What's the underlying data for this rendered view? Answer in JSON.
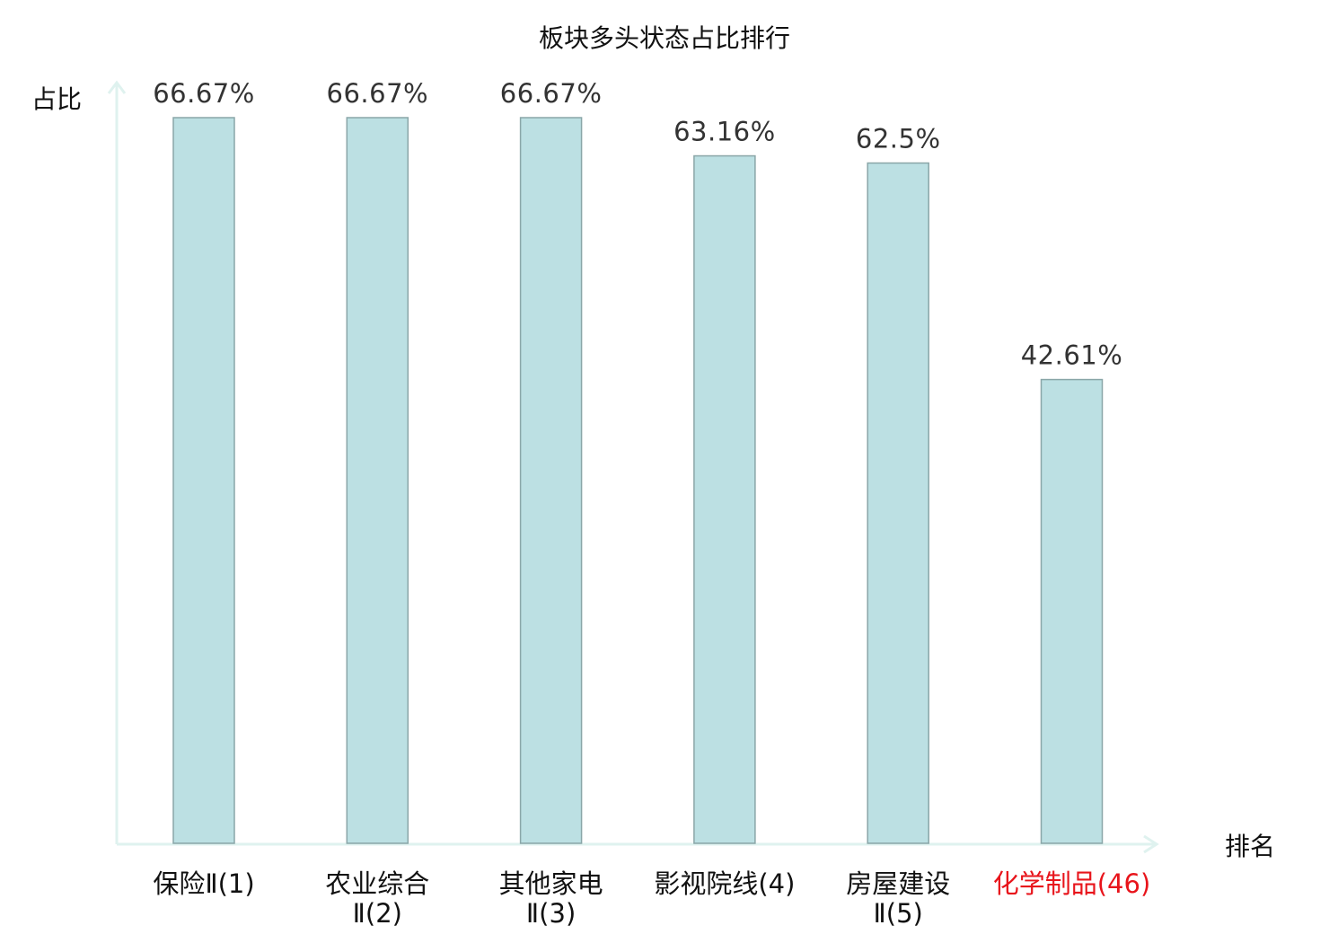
{
  "chart_data": {
    "type": "bar",
    "title": "板块多头状态占比排行",
    "ylabel": "占比",
    "xlabel": "排名",
    "categories": [
      {
        "lines": [
          "保险Ⅱ(1)"
        ],
        "highlight": false
      },
      {
        "lines": [
          "农业综合",
          "Ⅱ(2)"
        ],
        "highlight": false
      },
      {
        "lines": [
          "其他家电",
          "Ⅱ(3)"
        ],
        "highlight": false
      },
      {
        "lines": [
          "影视院线(4)"
        ],
        "highlight": false
      },
      {
        "lines": [
          "房屋建设",
          "Ⅱ(5)"
        ],
        "highlight": false
      },
      {
        "lines": [
          "化学制品(46)"
        ],
        "highlight": true
      }
    ],
    "values": [
      66.67,
      66.67,
      66.67,
      63.16,
      62.5,
      42.61
    ],
    "value_labels": [
      "66.67%",
      "66.67%",
      "66.67%",
      "63.16%",
      "62.5%",
      "42.61%"
    ],
    "ylim": [
      0,
      66.67
    ],
    "grid": false,
    "colors": {
      "bar_fill": "#bce0e3",
      "bar_stroke": "#8aa6a8",
      "axis": "#dff2ef",
      "label": "#111111",
      "highlight": "#e8141b",
      "value_label": "#333333"
    }
  }
}
